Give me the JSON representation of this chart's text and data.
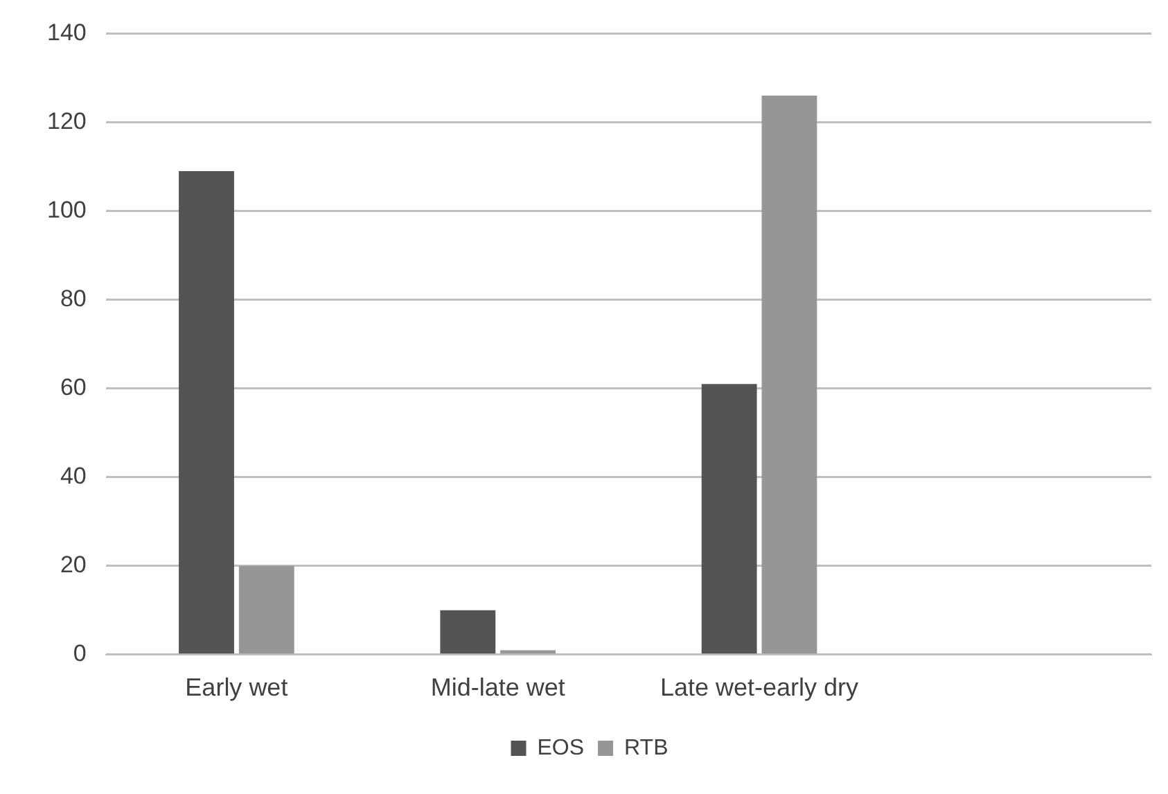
{
  "chart_data": {
    "type": "bar",
    "categories": [
      "Early wet",
      "Mid-late wet",
      "Late wet-early dry",
      null
    ],
    "series": [
      {
        "name": "EOS",
        "color": "#545454",
        "values": [
          109,
          10,
          61,
          null
        ]
      },
      {
        "name": "RTB",
        "color": "#969696",
        "values": [
          20,
          1,
          126,
          null
        ]
      }
    ],
    "ylim": [
      0,
      140
    ],
    "yticks": [
      0,
      20,
      40,
      60,
      80,
      100,
      120,
      140
    ],
    "grid": "y",
    "legend": "bottom"
  }
}
